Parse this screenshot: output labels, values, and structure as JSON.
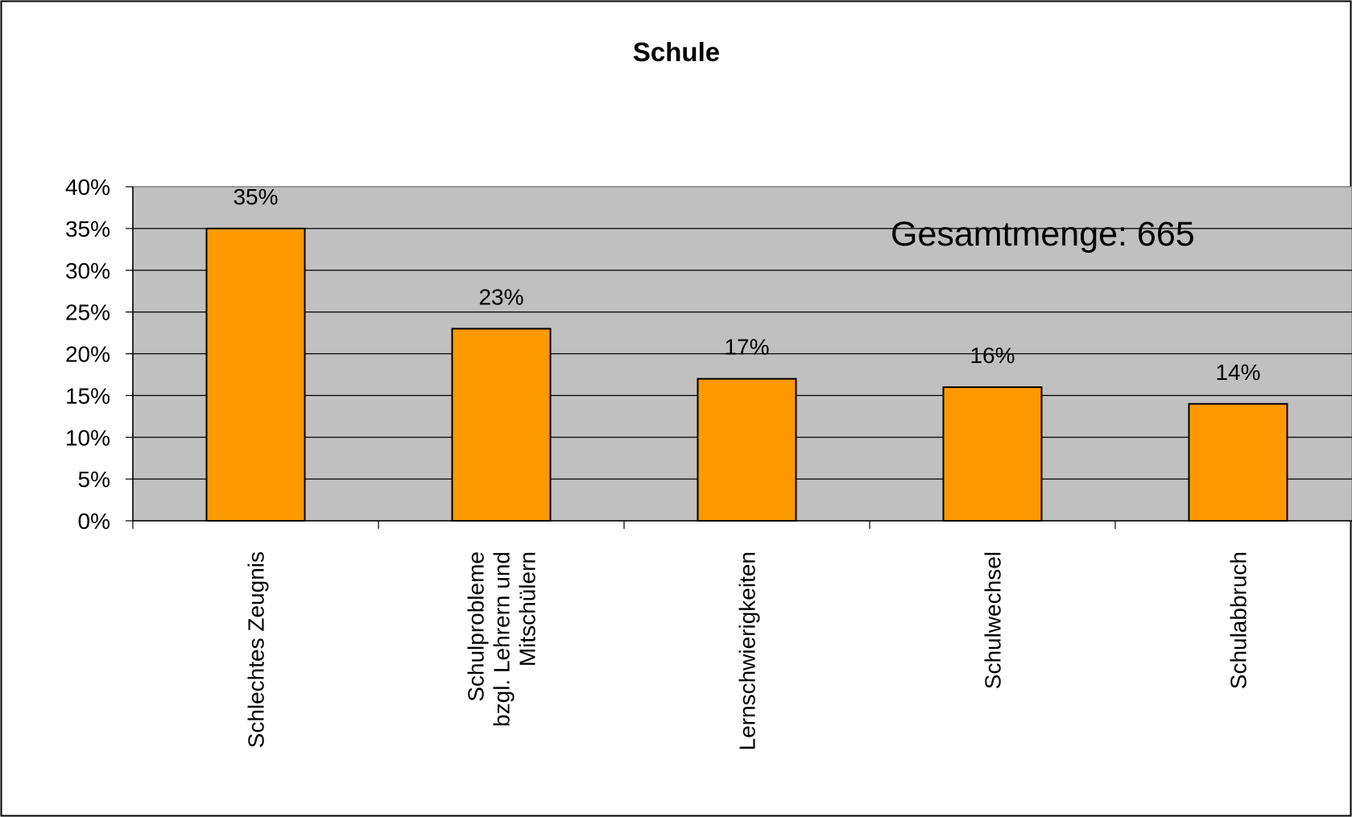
{
  "chart_data": {
    "type": "bar",
    "title": "Schule",
    "xlabel": "",
    "ylabel": "",
    "ylim": [
      0,
      40
    ],
    "y_ticks": [
      "0%",
      "5%",
      "10%",
      "15%",
      "20%",
      "25%",
      "30%",
      "35%",
      "40%"
    ],
    "y_tick_values": [
      0,
      5,
      10,
      15,
      20,
      25,
      30,
      35,
      40
    ],
    "categories": [
      [
        "Schlechtes Zeugnis"
      ],
      [
        "Schulprobleme",
        "bzgl. Lehrern und",
        "Mitschülern"
      ],
      [
        "Lernschwierigkeiten"
      ],
      [
        "Schulwechsel"
      ],
      [
        "Schulabbruch"
      ]
    ],
    "values": [
      35,
      23,
      17,
      16,
      14
    ],
    "data_labels": [
      "35%",
      "23%",
      "17%",
      "16%",
      "14%"
    ],
    "annotation": "Gesamtmenge: 665",
    "grid": true,
    "legend": "none",
    "colors": {
      "bar": "#FF9900",
      "bar_border": "#000000",
      "plot_background": "#C0C0C0",
      "gridline": "#000000",
      "chart_border": "#000000"
    }
  }
}
